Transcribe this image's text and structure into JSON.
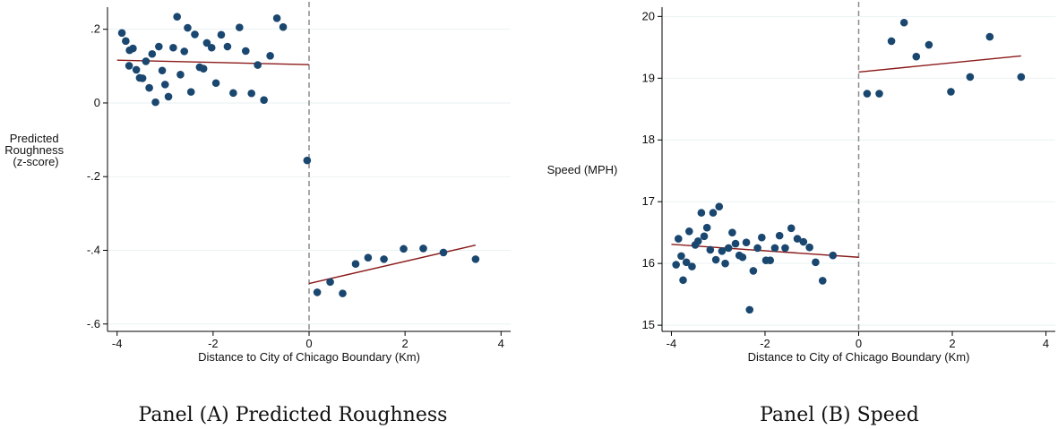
{
  "colors": {
    "point": "#1a476f",
    "fit_line": "#8b1a1a",
    "cutoff_line": "#8c8c8c",
    "axis": "#000000",
    "grid": "#eaf2f3"
  },
  "chart_data": [
    {
      "type": "scatter",
      "caption": "Panel (A) Predicted Roughness",
      "xlabel": "Distance to City of Chicago Boundary (Km)",
      "ylabel_lines": [
        "Predicted",
        "Roughness",
        "(z-score)"
      ],
      "xlim": [
        -4.2,
        4.2
      ],
      "ylim": [
        -0.62,
        0.26
      ],
      "xticks": [
        -4,
        -2,
        0,
        2,
        4
      ],
      "xtick_labels": [
        "-4",
        "-2",
        "0",
        "2",
        "4"
      ],
      "yticks": [
        0.2,
        0,
        -0.2,
        -0.4,
        -0.6
      ],
      "ytick_labels": [
        ".2",
        "0",
        "-.2",
        "-.4",
        "-.6"
      ],
      "grid": true,
      "cutoff_x": 0,
      "points": [
        [
          -3.9,
          0.19
        ],
        [
          -3.82,
          0.168
        ],
        [
          -3.75,
          0.101
        ],
        [
          -3.74,
          0.143
        ],
        [
          -3.67,
          0.148
        ],
        [
          -3.6,
          0.09
        ],
        [
          -3.53,
          0.068
        ],
        [
          -3.47,
          0.067
        ],
        [
          -3.4,
          0.113
        ],
        [
          -3.33,
          0.041
        ],
        [
          -3.27,
          0.133
        ],
        [
          -3.2,
          0.002
        ],
        [
          -3.13,
          0.153
        ],
        [
          -3.06,
          0.088
        ],
        [
          -3.0,
          0.05
        ],
        [
          -2.93,
          0.017
        ],
        [
          -2.83,
          0.15
        ],
        [
          -2.75,
          0.234
        ],
        [
          -2.68,
          0.077
        ],
        [
          -2.6,
          0.14
        ],
        [
          -2.53,
          0.204
        ],
        [
          -2.46,
          0.03
        ],
        [
          -2.38,
          0.186
        ],
        [
          -2.28,
          0.097
        ],
        [
          -2.2,
          0.093
        ],
        [
          -2.13,
          0.163
        ],
        [
          -2.03,
          0.15
        ],
        [
          -1.94,
          0.054
        ],
        [
          -1.83,
          0.185
        ],
        [
          -1.7,
          0.153
        ],
        [
          -1.58,
          0.027
        ],
        [
          -1.45,
          0.205
        ],
        [
          -1.32,
          0.141
        ],
        [
          -1.2,
          0.026
        ],
        [
          -1.07,
          0.103
        ],
        [
          -0.94,
          0.008
        ],
        [
          -0.81,
          0.128
        ],
        [
          -0.67,
          0.23
        ],
        [
          -0.54,
          0.206
        ],
        [
          -0.04,
          -0.156
        ],
        [
          0.17,
          -0.514
        ],
        [
          0.44,
          -0.486
        ],
        [
          0.7,
          -0.517
        ],
        [
          0.97,
          -0.437
        ],
        [
          1.23,
          -0.42
        ],
        [
          1.56,
          -0.424
        ],
        [
          1.97,
          -0.396
        ],
        [
          2.38,
          -0.395
        ],
        [
          2.8,
          -0.406
        ],
        [
          3.47,
          -0.424
        ]
      ],
      "fits": [
        {
          "x": [
            -4.0,
            0.0
          ],
          "y": [
            0.116,
            0.104
          ]
        },
        {
          "x": [
            0.0,
            3.47
          ],
          "y": [
            -0.49,
            -0.386
          ]
        }
      ]
    },
    {
      "type": "scatter",
      "caption": "Panel (B) Speed",
      "xlabel": "Distance to City of Chicago Boundary (Km)",
      "ylabel_lines": [
        "Speed (MPH)"
      ],
      "xlim": [
        -4.2,
        4.2
      ],
      "ylim": [
        14.9,
        20.15
      ],
      "xticks": [
        -4,
        -2,
        0,
        2,
        4
      ],
      "xtick_labels": [
        "-4",
        "-2",
        "0",
        "2",
        "4"
      ],
      "yticks": [
        15,
        16,
        17,
        18,
        19,
        20
      ],
      "ytick_labels": [
        "15",
        "16",
        "17",
        "18",
        "19",
        "20"
      ],
      "grid": true,
      "cutoff_x": 0,
      "points": [
        [
          -3.9,
          15.98
        ],
        [
          -3.85,
          16.4
        ],
        [
          -3.79,
          16.12
        ],
        [
          -3.75,
          15.73
        ],
        [
          -3.68,
          16.02
        ],
        [
          -3.62,
          16.52
        ],
        [
          -3.56,
          15.95
        ],
        [
          -3.49,
          16.3
        ],
        [
          -3.43,
          16.36
        ],
        [
          -3.36,
          16.82
        ],
        [
          -3.3,
          16.44
        ],
        [
          -3.24,
          16.58
        ],
        [
          -3.17,
          16.22
        ],
        [
          -3.11,
          16.82
        ],
        [
          -3.05,
          16.06
        ],
        [
          -2.98,
          16.92
        ],
        [
          -2.92,
          16.2
        ],
        [
          -2.85,
          16.0
        ],
        [
          -2.78,
          16.25
        ],
        [
          -2.7,
          16.5
        ],
        [
          -2.63,
          16.32
        ],
        [
          -2.55,
          16.13
        ],
        [
          -2.48,
          16.1
        ],
        [
          -2.4,
          16.34
        ],
        [
          -2.33,
          15.25
        ],
        [
          -2.25,
          15.88
        ],
        [
          -2.16,
          16.25
        ],
        [
          -2.07,
          16.42
        ],
        [
          -1.98,
          16.05
        ],
        [
          -1.89,
          16.05
        ],
        [
          -1.79,
          16.25
        ],
        [
          -1.69,
          16.45
        ],
        [
          -1.57,
          16.25
        ],
        [
          -1.44,
          16.57
        ],
        [
          -1.31,
          16.4
        ],
        [
          -1.18,
          16.35
        ],
        [
          -1.05,
          16.26
        ],
        [
          -0.92,
          16.02
        ],
        [
          -0.77,
          15.72
        ],
        [
          -0.55,
          16.13
        ],
        [
          0.18,
          18.75
        ],
        [
          0.44,
          18.75
        ],
        [
          0.7,
          19.6
        ],
        [
          0.97,
          19.9
        ],
        [
          1.23,
          19.35
        ],
        [
          1.5,
          19.54
        ],
        [
          1.97,
          18.78
        ],
        [
          2.38,
          19.02
        ],
        [
          2.8,
          19.67
        ],
        [
          3.47,
          19.02
        ]
      ],
      "fits": [
        {
          "x": [
            -4.0,
            0.0
          ],
          "y": [
            16.31,
            16.1
          ]
        },
        {
          "x": [
            0.0,
            3.47
          ],
          "y": [
            19.1,
            19.36
          ]
        }
      ]
    }
  ]
}
